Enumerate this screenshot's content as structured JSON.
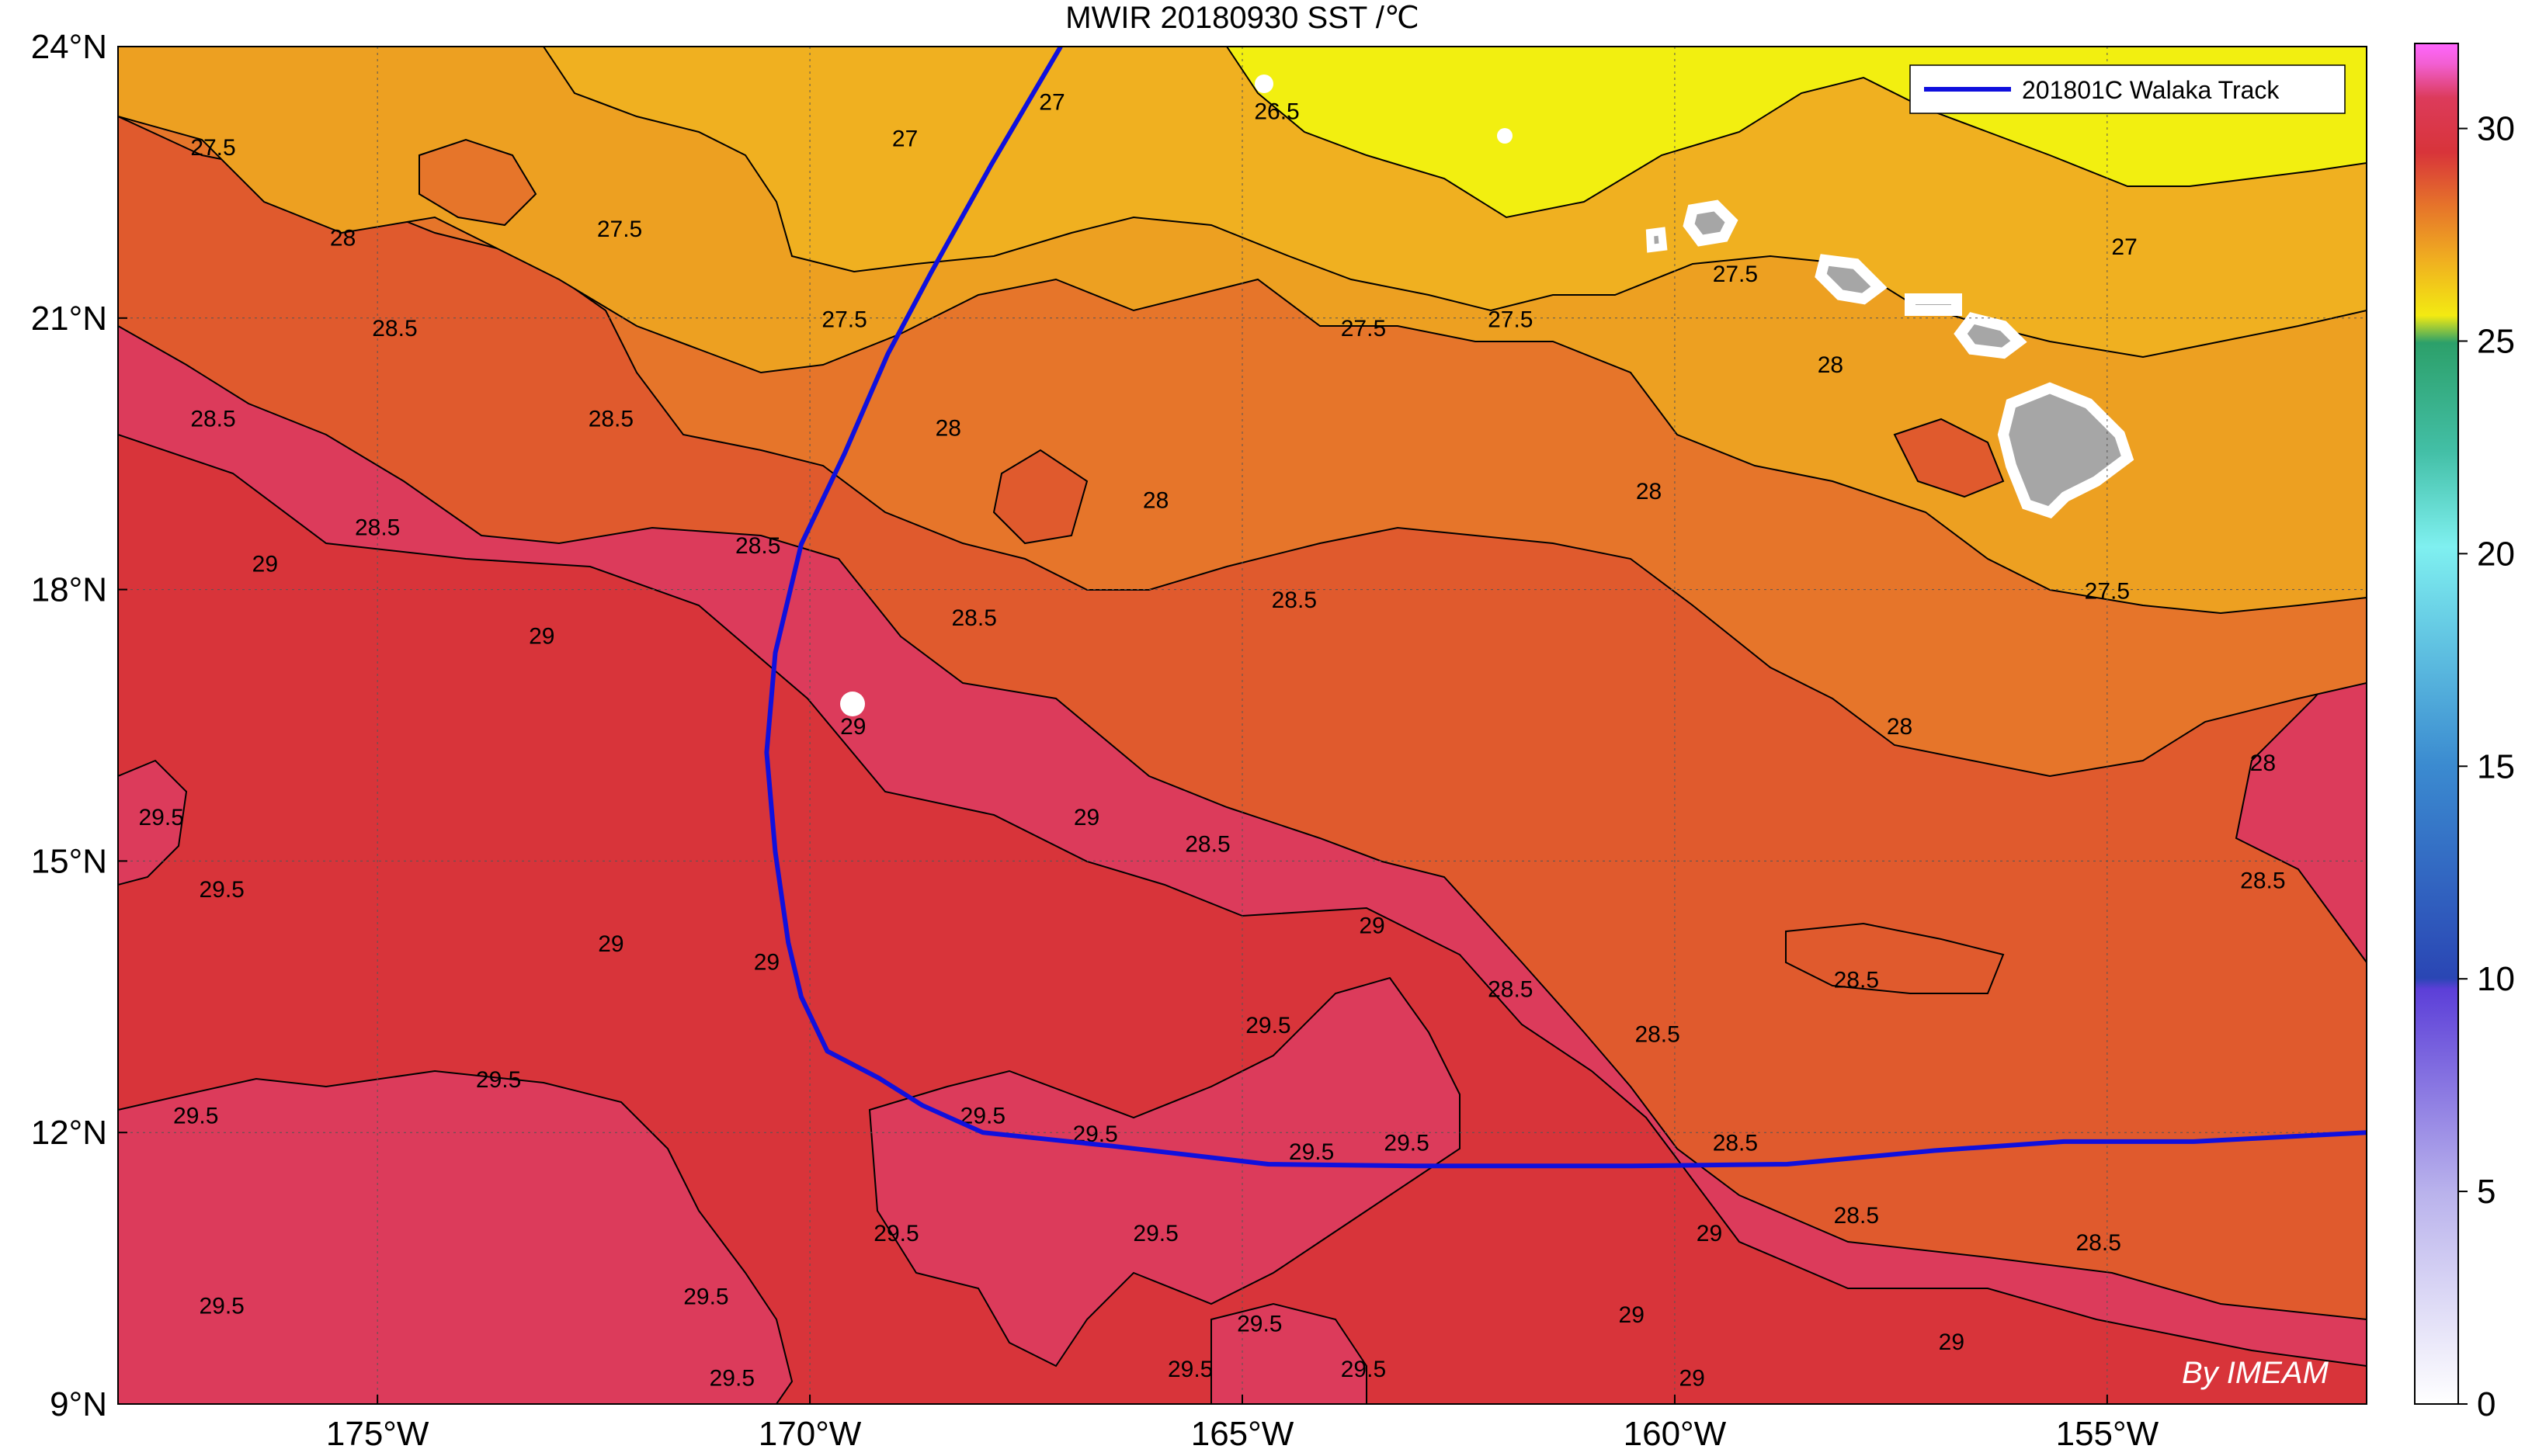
{
  "map": {
    "title": "MWIR 20180930 SST /℃",
    "lon_ticks": [
      "175°W",
      "170°W",
      "165°W",
      "160°W",
      "155°W"
    ],
    "lat_ticks": [
      "24°N",
      "21°N",
      "18°N",
      "15°N",
      "12°N",
      "9°N"
    ],
    "extent": {
      "lon_min": -178,
      "lon_max": -152,
      "lat_min": 9,
      "lat_max": 24
    },
    "legend": {
      "label": "201801C Walaka Track",
      "color": "#1010dd"
    },
    "credit": "By IMEAM",
    "colorbar": {
      "ticks": [
        "30",
        "25",
        "20",
        "15",
        "10",
        "5",
        "0"
      ],
      "range": [
        0,
        32
      ]
    },
    "colors": {
      "sst_26": "#f2ef10",
      "sst_27": "#f0b020",
      "sst_27_5": "#eda021",
      "sst_28": "#e6752a",
      "sst_28_5": "#e05a2d",
      "sst_29": "#d8343a",
      "sst_29_5": "#dc3b5b",
      "land": "#a6a6a6",
      "missing": "#ffffff"
    },
    "contour_labels": [
      {
        "text": "27",
        "lon": -167.2,
        "lat": 23.3
      },
      {
        "text": "26.5",
        "lon": -164.6,
        "lat": 23.2
      },
      {
        "text": "27",
        "lon": -168.9,
        "lat": 22.9
      },
      {
        "text": "27.5",
        "lon": -176.9,
        "lat": 22.8
      },
      {
        "text": "28",
        "lon": -175.4,
        "lat": 21.8
      },
      {
        "text": "27.5",
        "lon": -172.2,
        "lat": 21.9
      },
      {
        "text": "28.5",
        "lon": -174.8,
        "lat": 20.8
      },
      {
        "text": "28.5",
        "lon": -176.9,
        "lat": 19.8
      },
      {
        "text": "28.5",
        "lon": -172.3,
        "lat": 19.8
      },
      {
        "text": "27.5",
        "lon": -169.6,
        "lat": 20.9
      },
      {
        "text": "28",
        "lon": -168.4,
        "lat": 19.7
      },
      {
        "text": "28.5",
        "lon": -175.0,
        "lat": 18.6
      },
      {
        "text": "28.5",
        "lon": -170.6,
        "lat": 18.4
      },
      {
        "text": "29",
        "lon": -176.3,
        "lat": 18.2
      },
      {
        "text": "29",
        "lon": -173.1,
        "lat": 17.4
      },
      {
        "text": "28.5",
        "lon": -168.1,
        "lat": 17.6
      },
      {
        "text": "28.5",
        "lon": -164.4,
        "lat": 17.8
      },
      {
        "text": "28",
        "lon": -166.0,
        "lat": 18.9
      },
      {
        "text": "28",
        "lon": -160.3,
        "lat": 19.0
      },
      {
        "text": "27.5",
        "lon": -163.6,
        "lat": 20.8
      },
      {
        "text": "27.5",
        "lon": -161.9,
        "lat": 20.9
      },
      {
        "text": "27",
        "lon": -154.8,
        "lat": 21.7
      },
      {
        "text": "27.5",
        "lon": -159.3,
        "lat": 21.4
      },
      {
        "text": "28",
        "lon": -158.2,
        "lat": 20.4
      },
      {
        "text": "27.5",
        "lon": -155.0,
        "lat": 17.9
      },
      {
        "text": "28",
        "lon": -153.2,
        "lat": 16.0
      },
      {
        "text": "28",
        "lon": -157.4,
        "lat": 16.4
      },
      {
        "text": "28.5",
        "lon": -153.2,
        "lat": 14.7
      },
      {
        "text": "29",
        "lon": -166.8,
        "lat": 15.4
      },
      {
        "text": "29",
        "lon": -169.5,
        "lat": 16.4
      },
      {
        "text": "28.5",
        "lon": -165.4,
        "lat": 15.1
      },
      {
        "text": "29",
        "lon": -172.3,
        "lat": 14.0
      },
      {
        "text": "29",
        "lon": -170.5,
        "lat": 13.8
      },
      {
        "text": "29.5",
        "lon": -173.6,
        "lat": 12.5
      },
      {
        "text": "29.5",
        "lon": -177.1,
        "lat": 12.1
      },
      {
        "text": "29.5",
        "lon": -176.8,
        "lat": 14.6
      },
      {
        "text": "29.5",
        "lon": -177.5,
        "lat": 15.4
      },
      {
        "text": "28.5",
        "lon": -161.9,
        "lat": 13.5
      },
      {
        "text": "28.5",
        "lon": -160.2,
        "lat": 13.0
      },
      {
        "text": "28.5",
        "lon": -157.9,
        "lat": 13.6
      },
      {
        "text": "28.5",
        "lon": -159.3,
        "lat": 11.8
      },
      {
        "text": "28.5",
        "lon": -157.9,
        "lat": 11.0
      },
      {
        "text": "28.5",
        "lon": -155.1,
        "lat": 10.7
      },
      {
        "text": "29.5",
        "lon": -164.7,
        "lat": 13.1
      },
      {
        "text": "29.5",
        "lon": -163.1,
        "lat": 11.8
      },
      {
        "text": "29.5",
        "lon": -164.2,
        "lat": 11.7
      },
      {
        "text": "29.5",
        "lon": -166.7,
        "lat": 11.9
      },
      {
        "text": "29.5",
        "lon": -168.0,
        "lat": 12.1
      },
      {
        "text": "29.5",
        "lon": -169.0,
        "lat": 10.8
      },
      {
        "text": "29.5",
        "lon": -166.0,
        "lat": 10.8
      },
      {
        "text": "29.5",
        "lon": -171.2,
        "lat": 10.1
      },
      {
        "text": "29.5",
        "lon": -176.8,
        "lat": 10.0
      },
      {
        "text": "29.5",
        "lon": -170.9,
        "lat": 9.2
      },
      {
        "text": "29.5",
        "lon": -164.8,
        "lat": 9.8
      },
      {
        "text": "29.5",
        "lon": -165.6,
        "lat": 9.3
      },
      {
        "text": "29.5",
        "lon": -163.6,
        "lat": 9.3
      },
      {
        "text": "29",
        "lon": -159.6,
        "lat": 10.8
      },
      {
        "text": "29",
        "lon": -160.5,
        "lat": 9.9
      },
      {
        "text": "29",
        "lon": -156.8,
        "lat": 9.6
      },
      {
        "text": "29",
        "lon": -159.8,
        "lat": 9.2
      },
      {
        "text": "29",
        "lon": -163.5,
        "lat": 14.2
      }
    ],
    "track": {
      "name": "201801C Walaka",
      "points": [
        {
          "lon": -152.0,
          "lat": 12.0
        },
        {
          "lon": -154.0,
          "lat": 11.9
        },
        {
          "lon": -155.5,
          "lat": 11.9
        },
        {
          "lon": -157.0,
          "lat": 11.8
        },
        {
          "lon": -158.7,
          "lat": 11.65
        },
        {
          "lon": -160.5,
          "lat": 11.63
        },
        {
          "lon": -163.0,
          "lat": 11.63
        },
        {
          "lon": -164.7,
          "lat": 11.65
        },
        {
          "lon": -166.5,
          "lat": 11.85
        },
        {
          "lon": -168.0,
          "lat": 12.0
        },
        {
          "lon": -168.7,
          "lat": 12.3
        },
        {
          "lon": -169.2,
          "lat": 12.6
        },
        {
          "lon": -169.8,
          "lat": 12.9
        },
        {
          "lon": -170.1,
          "lat": 13.5
        },
        {
          "lon": -170.25,
          "lat": 14.1
        },
        {
          "lon": -170.4,
          "lat": 15.1
        },
        {
          "lon": -170.5,
          "lat": 16.2
        },
        {
          "lon": -170.4,
          "lat": 17.3
        },
        {
          "lon": -170.1,
          "lat": 18.5
        },
        {
          "lon": -169.6,
          "lat": 19.5
        },
        {
          "lon": -169.1,
          "lat": 20.6
        },
        {
          "lon": -168.6,
          "lat": 21.5
        },
        {
          "lon": -167.9,
          "lat": 22.7
        },
        {
          "lon": -167.1,
          "lat": 24.0
        }
      ]
    }
  }
}
